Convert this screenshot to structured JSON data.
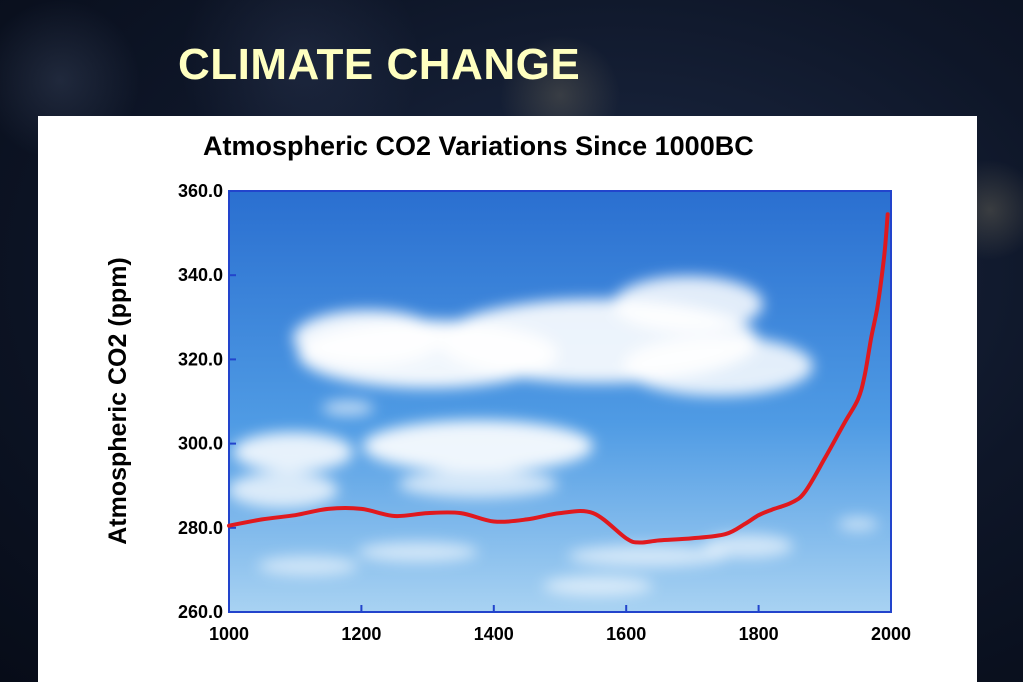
{
  "slide": {
    "title": "CLIMATE CHANGE"
  },
  "colors": {
    "slide_title": "#ffffc0",
    "series_line": "#e0191e",
    "plot_border": "#2244cc",
    "sky_top": "#2a6fd0",
    "sky_bottom": "#a8d2f2"
  },
  "chart_data": {
    "type": "line",
    "title": "Atmospheric CO2 Variations Since 1000BC",
    "xlabel": "",
    "ylabel": "Atmospheric CO2 (ppm)",
    "xlim": [
      1000,
      2000
    ],
    "ylim": [
      260,
      360
    ],
    "x_ticks": [
      "1000",
      "1200",
      "1400",
      "1600",
      "1800",
      "2000"
    ],
    "y_ticks": [
      "260.0",
      "280.0",
      "300.0",
      "320.0",
      "340.0",
      "360.0"
    ],
    "grid": false,
    "background": "sky-with-clouds",
    "series": [
      {
        "color": "#e0191e",
        "x": [
          1000,
          1050,
          1100,
          1150,
          1200,
          1250,
          1300,
          1350,
          1400,
          1450,
          1500,
          1550,
          1600,
          1620,
          1650,
          1700,
          1750,
          1780,
          1800,
          1820,
          1850,
          1870,
          1900,
          1930,
          1950,
          1960,
          1970,
          1980,
          1990,
          1995
        ],
        "y": [
          280.5,
          282,
          283,
          284.5,
          284.5,
          282.8,
          283.5,
          283.5,
          281.5,
          282,
          283.5,
          283.5,
          277.5,
          276.5,
          277,
          277.5,
          278.5,
          281,
          283,
          284.3,
          286,
          288.5,
          296.5,
          305,
          310.5,
          316,
          325,
          333,
          345,
          354.5
        ]
      }
    ]
  }
}
